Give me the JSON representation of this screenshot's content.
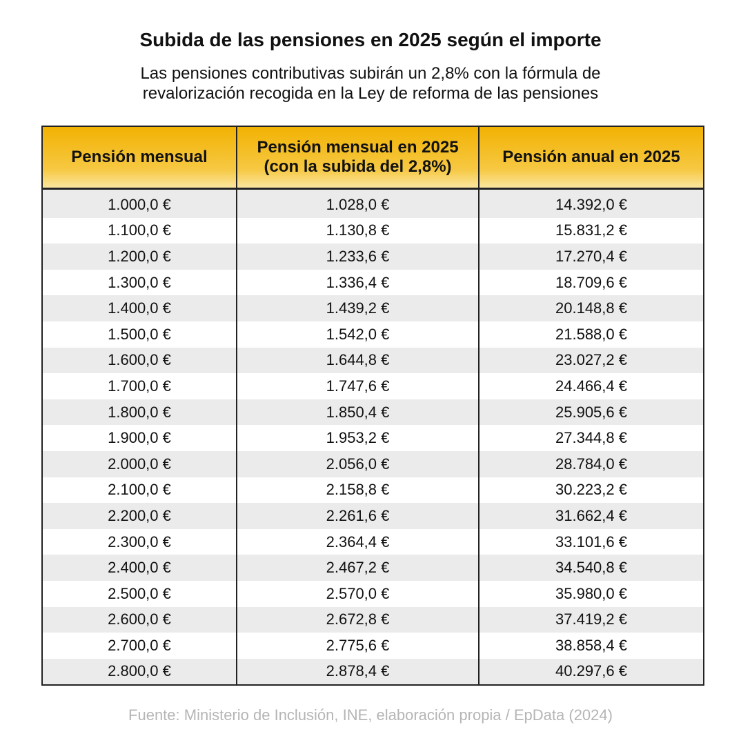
{
  "header": {
    "title": "Subida de las pensiones en 2025 según el importe",
    "subtitle": [
      "Las pensiones contributivas subirán un 2,8% con la fórmula de",
      "revalorización recogida en la Ley de reforma de las pensiones"
    ]
  },
  "table": {
    "columns": [
      "Pensión mensual",
      "Pensión mensual en 2025\n(con la subida del 2,8%)",
      "Pensión anual en 2025"
    ],
    "rows": [
      [
        "1.000,0 €",
        "1.028,0 €",
        "14.392,0 €"
      ],
      [
        "1.100,0 €",
        "1.130,8 €",
        "15.831,2 €"
      ],
      [
        "1.200,0 €",
        "1.233,6 €",
        "17.270,4 €"
      ],
      [
        "1.300,0 €",
        "1.336,4 €",
        "18.709,6 €"
      ],
      [
        "1.400,0 €",
        "1.439,2 €",
        "20.148,8 €"
      ],
      [
        "1.500,0 €",
        "1.542,0 €",
        "21.588,0 €"
      ],
      [
        "1.600,0 €",
        "1.644,8 €",
        "23.027,2 €"
      ],
      [
        "1.700,0 €",
        "1.747,6 €",
        "24.466,4 €"
      ],
      [
        "1.800,0 €",
        "1.850,4 €",
        "25.905,6 €"
      ],
      [
        "1.900,0 €",
        "1.953,2 €",
        "27.344,8 €"
      ],
      [
        "2.000,0 €",
        "2.056,0 €",
        "28.784,0 €"
      ],
      [
        "2.100,0 €",
        "2.158,8 €",
        "30.223,2 €"
      ],
      [
        "2.200,0 €",
        "2.261,6 €",
        "31.662,4 €"
      ],
      [
        "2.300,0 €",
        "2.364,4 €",
        "33.101,6 €"
      ],
      [
        "2.400,0 €",
        "2.467,2 €",
        "34.540,8 €"
      ],
      [
        "2.500,0 €",
        "2.570,0 €",
        "35.980,0 €"
      ],
      [
        "2.600,0 €",
        "2.672,8 €",
        "37.419,2 €"
      ],
      [
        "2.700,0 €",
        "2.775,6 €",
        "38.858,4 €"
      ],
      [
        "2.800,0 €",
        "2.878,4 €",
        "40.297,6 €"
      ]
    ]
  },
  "footer": {
    "source": "Fuente: Ministerio de Inclusión, INE, elaboración propia / EpData (2024)"
  }
}
